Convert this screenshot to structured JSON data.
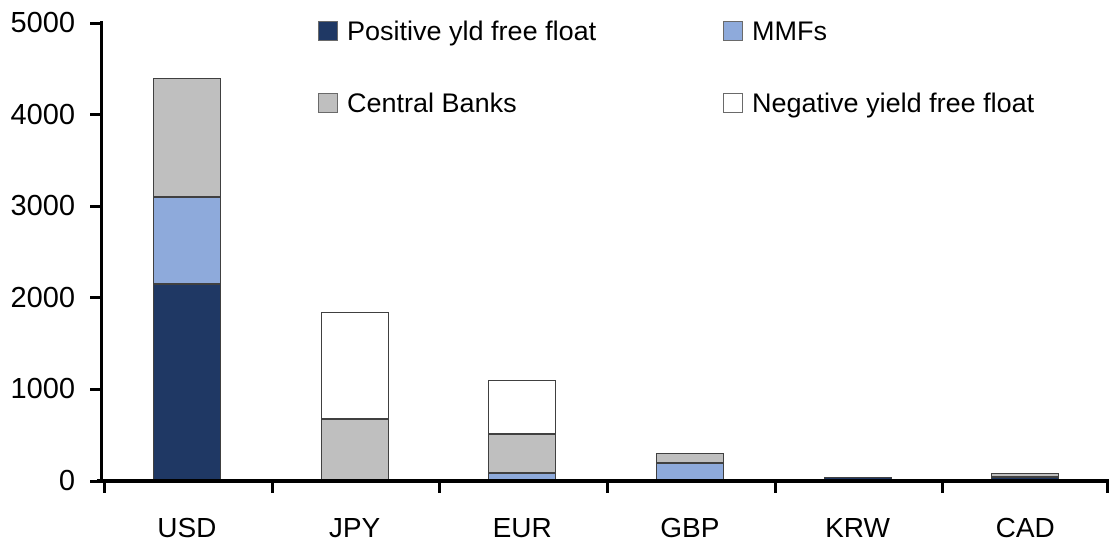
{
  "chart_data": {
    "type": "bar",
    "subtype": "stacked-vertical",
    "title": "",
    "xlabel": "",
    "ylabel": "",
    "categories": [
      "USD",
      "JPY",
      "EUR",
      "GBP",
      "KRW",
      "CAD"
    ],
    "series": [
      {
        "name": "Positive yld free float",
        "color": "#1F3864",
        "values": [
          2150,
          0,
          0,
          0,
          40,
          40
        ]
      },
      {
        "name": "MMFs",
        "color": "#8EAADB",
        "values": [
          950,
          0,
          90,
          200,
          0,
          0
        ]
      },
      {
        "name": "Central Banks",
        "color": "#BFBFBF",
        "values": [
          1300,
          680,
          425,
          110,
          0,
          45
        ]
      },
      {
        "name": "Negative yield free float",
        "color": "#FFFFFF",
        "values": [
          0,
          1160,
          590,
          0,
          0,
          0
        ]
      }
    ],
    "stack_order_bottom_to_top": [
      "Positive yld free float",
      "MMFs",
      "Central Banks",
      "Negative yield free float"
    ],
    "totals": {
      "USD": 4400,
      "JPY": 1840,
      "EUR": 1105,
      "GBP": 310,
      "KRW": 40,
      "CAD": 85
    },
    "ylim": [
      0,
      5000
    ],
    "ytick_step": 1000,
    "ytick_labels": [
      "0",
      "1000",
      "2000",
      "3000",
      "4000",
      "5000"
    ],
    "grid": false,
    "legend_position": "top-two-rows",
    "legend_rows": [
      [
        "Positive yld free float",
        "MMFs"
      ],
      [
        "Central Banks",
        "Negative yield free float"
      ]
    ],
    "axis_color": "#000000",
    "segment_border_color": "#404040",
    "background": "#FFFFFF"
  }
}
